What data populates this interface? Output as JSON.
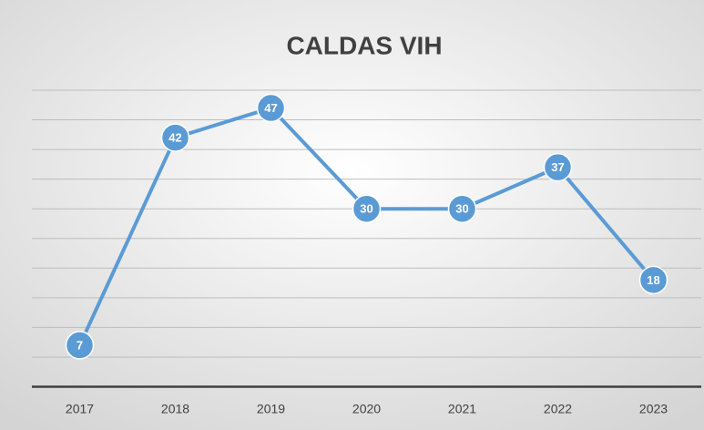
{
  "chart_data": {
    "type": "line",
    "title": "CALDAS VIH",
    "categories": [
      "2017",
      "2018",
      "2019",
      "2020",
      "2021",
      "2022",
      "2023"
    ],
    "values": [
      7,
      42,
      47,
      30,
      30,
      37,
      18
    ],
    "color": "#5b9bd5",
    "ylim": [
      0,
      50
    ],
    "yticks": [
      0,
      5,
      10,
      15,
      20,
      25,
      30,
      35,
      40,
      45,
      50
    ],
    "grid": true
  }
}
